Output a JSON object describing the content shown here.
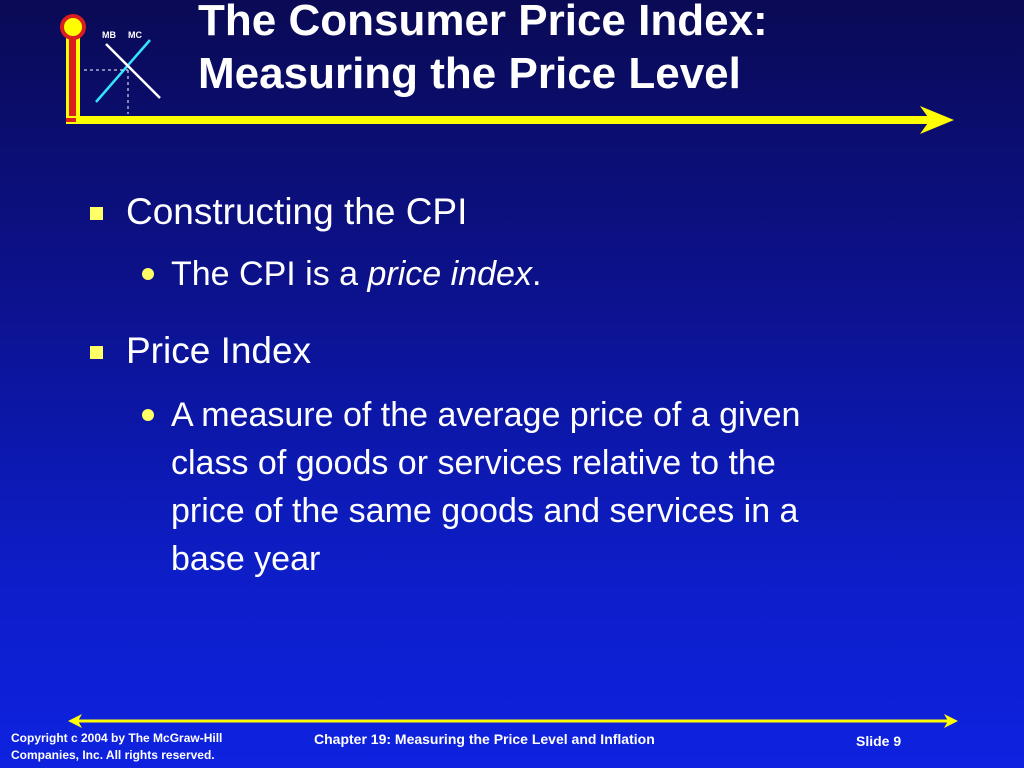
{
  "logo": {
    "mb_label": "MB",
    "mc_label": "MC"
  },
  "title": {
    "line1": "The Consumer Price Index:",
    "line2": "Measuring the Price Level"
  },
  "bullets": [
    {
      "text": "Constructing the CPI",
      "sub": [
        {
          "before": "The CPI is a ",
          "italic": "price index",
          "after": "."
        }
      ]
    },
    {
      "text": "Price Index",
      "sub": [
        {
          "lines": [
            "A measure of the average price of a given",
            "class of goods or services relative to the",
            "price of the same goods and services in a",
            "base year"
          ]
        }
      ]
    }
  ],
  "footer": {
    "copyright_line1": "Copyright c 2004 by The McGraw-Hill",
    "copyright_line2": "Companies, Inc.  All rights reserved.",
    "chapter": "Chapter 19: Measuring the Price Level and Inflation",
    "slide": "Slide 9"
  },
  "colors": {
    "background_top": "#0a0a55",
    "background_bottom": "#0e22e0",
    "accent_yellow": "#ffff00",
    "accent_orange": "#f08a1c",
    "accent_red": "#d81e1e",
    "cyan": "#33e6ff",
    "bullet_yellow": "#ffff66"
  }
}
